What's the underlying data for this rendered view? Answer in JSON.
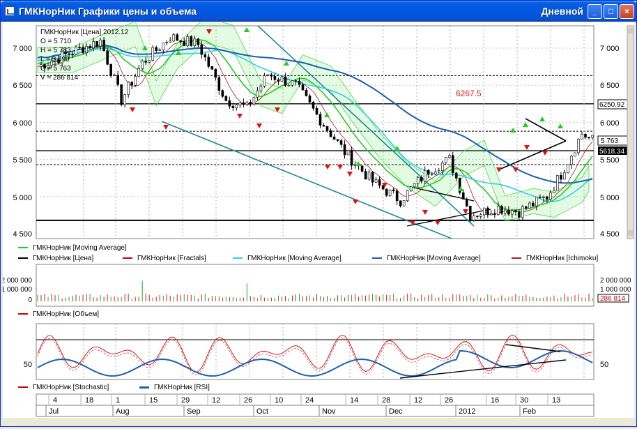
{
  "window": {
    "title": "ГМКНорНик Графики цены и объема",
    "period": "Дневной",
    "btn_min": "_",
    "btn_max": "□",
    "btn_close": "×"
  },
  "price_pane": {
    "info": {
      "header": "ГМКНорНик [Цена] 2012.12",
      "open": "O = 5 710",
      "high": "H = 5 783",
      "low": "L = 5 690",
      "close": "C = 5 763",
      "volume": "V = 286 814"
    },
    "y_ticks": [
      "7 000",
      "6 500",
      "6 000",
      "5 500",
      "5 000",
      "4 500"
    ],
    "level_label": "6267.5",
    "right_tags": [
      "6250.92",
      "5 763",
      "5618.34"
    ],
    "legend": [
      {
        "label": "ГМКНорНик [Moving Average]",
        "color": "#22cc22"
      },
      {
        "label": "ГМКНорНик [Цена]",
        "color": "#000000"
      },
      {
        "label": "ГМКНорНик [Fractals]",
        "color": "#cc0000"
      },
      {
        "label": "ГМКНорНик [Moving Average]",
        "color": "#30d0e8"
      },
      {
        "label": "ГМКНорНик [Moving Average]",
        "color": "#1a60b0"
      },
      {
        "label": "ГМКНорНик [Ichimoku]",
        "color": "#a02020"
      }
    ],
    "colors": {
      "ma_fast": "#22cc22",
      "ma_mid": "#30d0e8",
      "ma_slow": "#1a60b0",
      "ichimoku": "#a02020",
      "cloud": "#44dd44",
      "trend": "#1a8a9a",
      "fractal_up": "#22cc22",
      "fractal_down": "#dd1111"
    }
  },
  "volume_pane": {
    "y_ticks_left": [
      "2 000 000",
      "1 000 000",
      "0"
    ],
    "y_ticks_right": [
      "2 000 000",
      "1 000 000"
    ],
    "last_value": "286 814",
    "legend": [
      {
        "label": "ГМКНорНик [Объем]",
        "color": "#cc0000"
      }
    ]
  },
  "osc_pane": {
    "y_tick": "50",
    "legend": [
      {
        "label": "ГМКНорНик [Stochastic]",
        "color": "#cc0000"
      },
      {
        "label": "ГМКНорНик [RSI]",
        "color": "#1a60b0"
      }
    ]
  },
  "time_axis": {
    "days": [
      "4",
      "18",
      "1",
      "15",
      "29",
      "12",
      "26",
      "10",
      "24",
      "14",
      "28",
      "12",
      "26",
      "16",
      "30",
      "13"
    ],
    "months": [
      "Jul",
      "Aug",
      "Sep",
      "Oct",
      "Nov",
      "Dec",
      "2012",
      "Feb"
    ]
  }
}
